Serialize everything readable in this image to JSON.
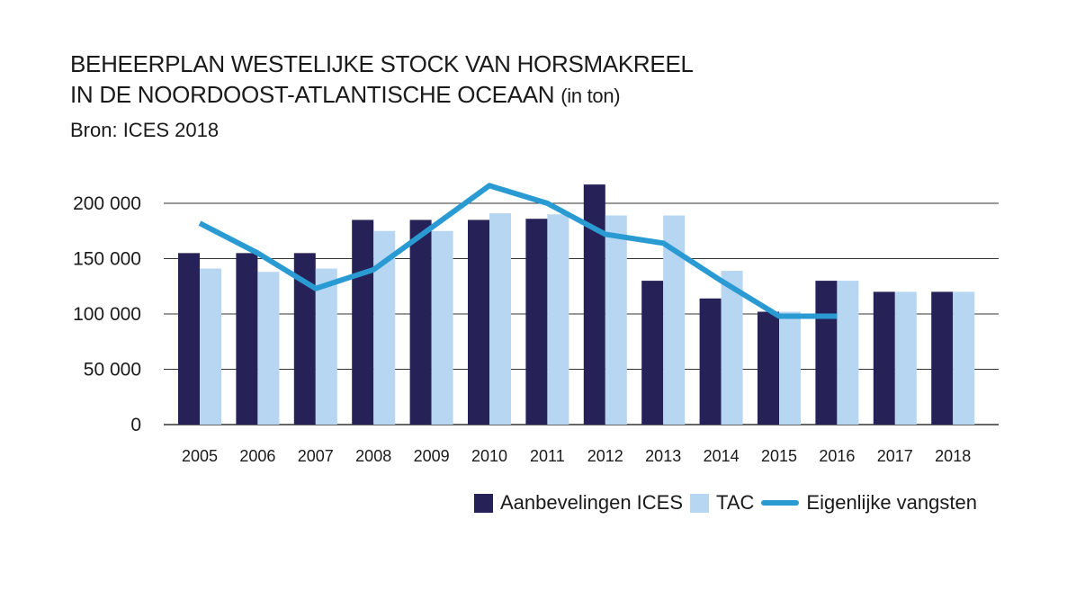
{
  "title": {
    "line1": "BEHEERPLAN WESTELIJKE STOCK VAN HORSMAKREEL",
    "line2": "IN DE NOORDOOST-ATLANTISCHE OCEAAN",
    "unit": "(in ton)",
    "source": "Bron: ICES 2018"
  },
  "colors": {
    "ices": "#262156",
    "tac": "#b6d6f1",
    "catches": "#2a9bd2",
    "grid": "#333333"
  },
  "chart_data": {
    "type": "bar",
    "categories": [
      "2005",
      "2006",
      "2007",
      "2008",
      "2009",
      "2010",
      "2011",
      "2012",
      "2013",
      "2014",
      "2015",
      "2016",
      "2017",
      "2018"
    ],
    "y_ticks": [
      {
        "value": 0,
        "label": "0"
      },
      {
        "value": 50000,
        "label": "50 000"
      },
      {
        "value": 100000,
        "label": "100 000"
      },
      {
        "value": 150000,
        "label": "150 000"
      },
      {
        "value": 200000,
        "label": "200 000"
      }
    ],
    "ylim": [
      0,
      200000
    ],
    "grid": true,
    "legend_position": "bottom-right",
    "series": [
      {
        "name": "Aanbevelingen ICES",
        "kind": "bar",
        "values": [
          155000,
          155000,
          155000,
          185000,
          185000,
          185000,
          186000,
          217000,
          130000,
          114000,
          102000,
          130000,
          120000,
          120000
        ]
      },
      {
        "name": "TAC",
        "kind": "bar",
        "values": [
          141000,
          138000,
          141000,
          175000,
          175000,
          191000,
          190000,
          189000,
          189000,
          139000,
          102000,
          130000,
          120000,
          120000
        ]
      },
      {
        "name": "Eigenlijke vangsten",
        "kind": "line",
        "values": [
          182000,
          155000,
          123000,
          140000,
          178000,
          216000,
          200000,
          172000,
          164000,
          130000,
          98000,
          98000,
          null,
          null
        ]
      }
    ]
  }
}
